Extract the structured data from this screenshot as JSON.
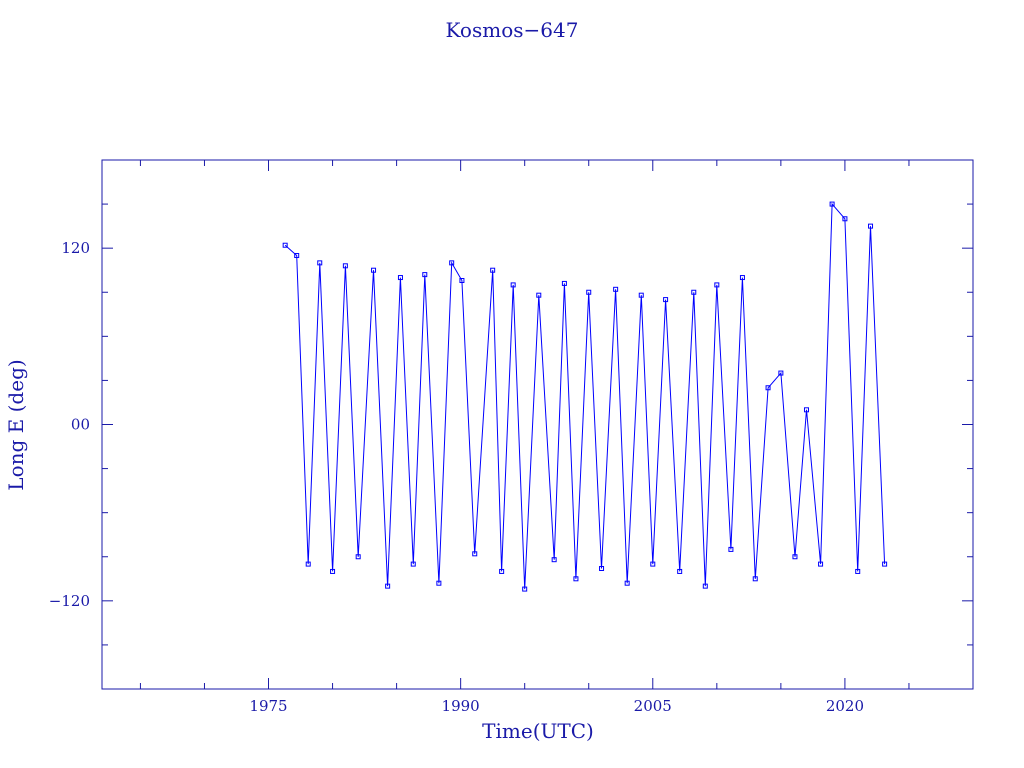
{
  "chart_data": {
    "type": "line",
    "title": "Kosmos−647",
    "xlabel": "Time(UTC)",
    "ylabel": "Long E (deg)",
    "xlim": [
      1962,
      2030
    ],
    "ylim": [
      -180,
      180
    ],
    "x_ticks": [
      {
        "value": 1975,
        "label": "1975"
      },
      {
        "value": 1990,
        "label": "1990"
      },
      {
        "value": 2005,
        "label": "2005"
      },
      {
        "value": 2020,
        "label": "2020"
      }
    ],
    "y_ticks": [
      {
        "value": 120,
        "label": "120"
      },
      {
        "value": 0,
        "label": "00"
      },
      {
        "value": -120,
        "label": "−120"
      }
    ],
    "grid": false,
    "marker": "square",
    "color": "#0000ff",
    "series": [
      {
        "x": [
          1976.3,
          1977.2,
          1978.1,
          1979.0,
          1980.0,
          1981.0,
          1982.0,
          1983.2,
          1984.3,
          1985.3,
          1986.3,
          1987.2,
          1988.3,
          1989.3,
          1990.1,
          1991.1,
          1992.5,
          1993.2,
          1994.1,
          1995.0,
          1996.1,
          1997.3,
          1998.1,
          1999.0,
          2000.0,
          2001.0,
          2002.1,
          2003.0,
          2004.1,
          2005.0,
          2006.0,
          2007.1,
          2008.2,
          2009.1,
          2010.0,
          2011.1,
          2012.0,
          2013.0,
          2014.0,
          2015.0,
          2016.1,
          2017.0,
          2018.1,
          2019.0,
          2020.0,
          2021.0,
          2022.0,
          2023.1
        ],
        "y": [
          122,
          115,
          -95,
          110,
          -100,
          108,
          -90,
          105,
          -110,
          100,
          -95,
          102,
          -108,
          110,
          98,
          -88,
          105,
          -100,
          95,
          -112,
          88,
          -92,
          96,
          -105,
          90,
          -98,
          92,
          -108,
          88,
          -95,
          85,
          -100,
          90,
          -110,
          95,
          -85,
          100,
          -105,
          25,
          35,
          -90,
          10,
          -95,
          150,
          140,
          -100,
          135,
          -95
        ]
      }
    ]
  }
}
